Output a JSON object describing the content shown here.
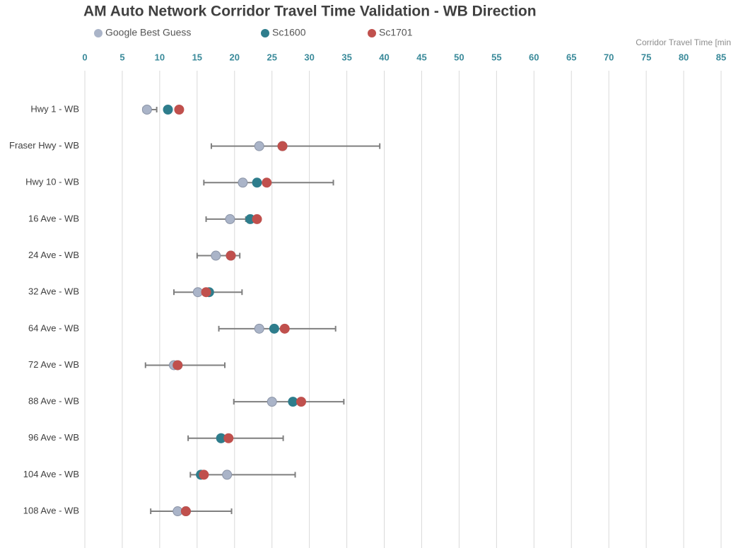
{
  "chart_data": {
    "type": "dot",
    "title": "AM Auto Network Corridor Travel Time Validation - WB Direction",
    "x_label": "Corridor Travel Time [min",
    "categories": [
      "Hwy 1 - WB",
      "Fraser Hwy - WB",
      "Hwy 10 - WB",
      "16 Ave - WB",
      "24 Ave - WB",
      "32 Ave - WB",
      "64 Ave - WB",
      "72 Ave - WB",
      "88 Ave - WB",
      "96 Ave - WB",
      "104 Ave - WB",
      "108 Ave - WB"
    ],
    "series": [
      {
        "name": "Google Best Guess",
        "color": "#aab4c8",
        "values": [
          8.3,
          23.3,
          21.1,
          19.4,
          17.5,
          15.1,
          23.3,
          11.9,
          25.0,
          18.2,
          19.0,
          12.4
        ],
        "low": [
          7.8,
          16.9,
          15.9,
          16.2,
          15.0,
          11.9,
          17.9,
          8.1,
          19.9,
          13.8,
          14.1,
          8.8
        ],
        "high": [
          9.6,
          39.4,
          33.2,
          21.5,
          20.7,
          21.0,
          33.5,
          18.7,
          34.6,
          26.5,
          28.1,
          19.6
        ]
      },
      {
        "name": "Sc1600",
        "color": "#2e7d8c",
        "values": [
          11.1,
          26.4,
          23.0,
          22.1,
          19.5,
          16.6,
          25.3,
          12.4,
          27.8,
          18.2,
          15.5,
          13.5
        ]
      },
      {
        "name": "Sc1701",
        "color": "#c0504d",
        "values": [
          12.6,
          26.4,
          24.3,
          23.0,
          19.5,
          16.2,
          26.7,
          12.4,
          28.9,
          19.2,
          15.9,
          13.5
        ]
      }
    ],
    "xlim": [
      0,
      85
    ],
    "xticks": [
      0,
      5,
      10,
      15,
      20,
      25,
      30,
      35,
      40,
      45,
      50,
      55,
      60,
      65,
      70,
      75,
      80,
      85
    ],
    "grid": true
  }
}
